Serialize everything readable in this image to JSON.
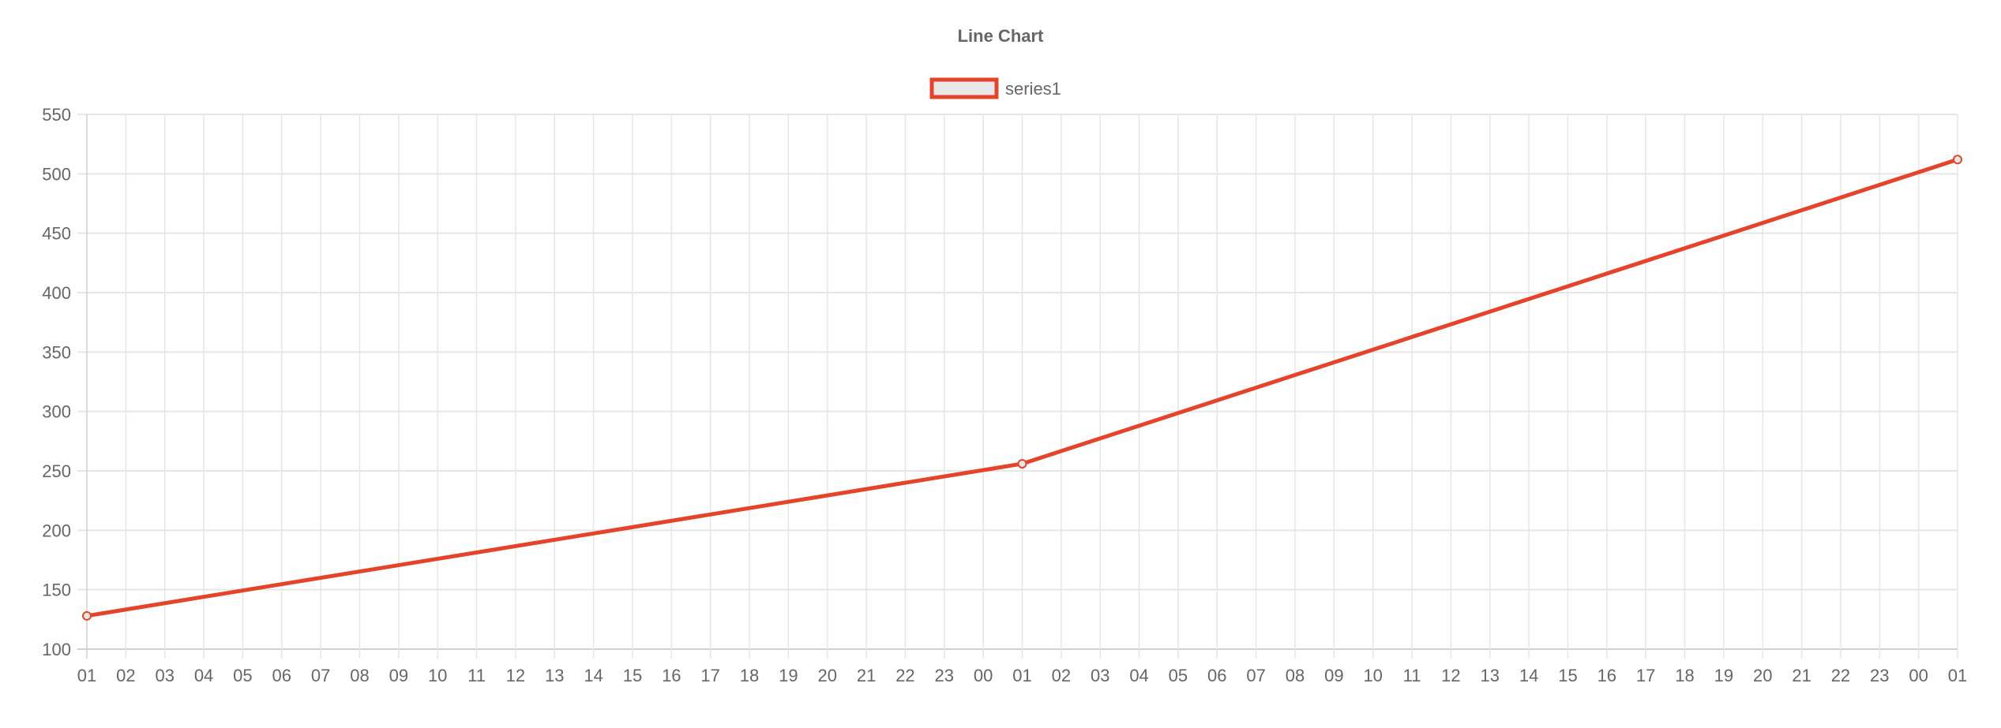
{
  "chart_data": {
    "type": "line",
    "title": "Line Chart",
    "legend": {
      "position": "top",
      "entries": [
        "series1"
      ]
    },
    "xlabel": "",
    "ylabel": "",
    "categories": [
      "01",
      "02",
      "03",
      "04",
      "05",
      "06",
      "07",
      "08",
      "09",
      "10",
      "11",
      "12",
      "13",
      "14",
      "15",
      "16",
      "17",
      "18",
      "19",
      "20",
      "21",
      "22",
      "23",
      "00",
      "01",
      "02",
      "03",
      "04",
      "05",
      "06",
      "07",
      "08",
      "09",
      "10",
      "11",
      "12",
      "13",
      "14",
      "15",
      "16",
      "17",
      "18",
      "19",
      "20",
      "21",
      "22",
      "23",
      "00",
      "01"
    ],
    "series": [
      {
        "name": "series1",
        "values": [
          128,
          null,
          null,
          null,
          null,
          null,
          null,
          null,
          null,
          null,
          null,
          null,
          null,
          null,
          null,
          null,
          null,
          null,
          null,
          null,
          null,
          null,
          null,
          null,
          256,
          null,
          null,
          null,
          null,
          null,
          null,
          null,
          null,
          null,
          null,
          null,
          null,
          null,
          null,
          null,
          null,
          null,
          null,
          null,
          null,
          null,
          null,
          null,
          512
        ],
        "color": "#e5432a",
        "fill": "#e8e8e8"
      }
    ],
    "ylim": [
      100,
      550
    ],
    "yticks": [
      100,
      150,
      200,
      250,
      300,
      350,
      400,
      450,
      500,
      550
    ],
    "grid": true
  }
}
